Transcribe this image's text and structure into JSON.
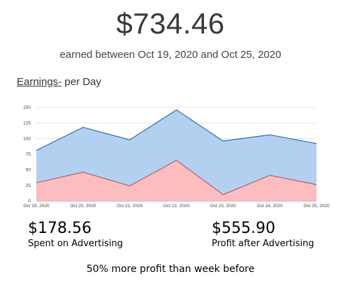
{
  "header": {
    "total": "$734.46",
    "subtitle": "earned between Oct 19, 2020 and Oct 25, 2020"
  },
  "chart_title": {
    "underlined": "Earnings-",
    "rest": " per Day"
  },
  "chart_data": {
    "type": "area",
    "title": "Earnings- per Day",
    "categories": [
      "Oct 19, 2020",
      "Oct 20, 2020",
      "Oct 21, 2020",
      "Oct 22, 2020",
      "Oct 23, 2020",
      "Oct 24, 2020",
      "Oct 25, 2020"
    ],
    "series": [
      {
        "values": [
          81,
          118,
          98,
          146,
          96,
          106,
          92
        ],
        "color": "#1f6fbf",
        "fill": "#b3d0f0"
      },
      {
        "values": [
          29,
          46,
          24,
          65,
          10,
          41,
          26
        ],
        "color": "#d9534f",
        "fill": "#ffbcbc"
      }
    ],
    "yticks": [
      0,
      25,
      50,
      75,
      100,
      125,
      150
    ],
    "ylim": [
      0,
      150
    ],
    "grid": true,
    "xlabel": "",
    "ylabel": ""
  },
  "stats": {
    "spent": {
      "amount": "$178.56",
      "label": "Spent on Advertising"
    },
    "profit": {
      "amount": "$555.90",
      "label": "Profit after Advertising"
    }
  },
  "footnote": "50% more profit than week before"
}
